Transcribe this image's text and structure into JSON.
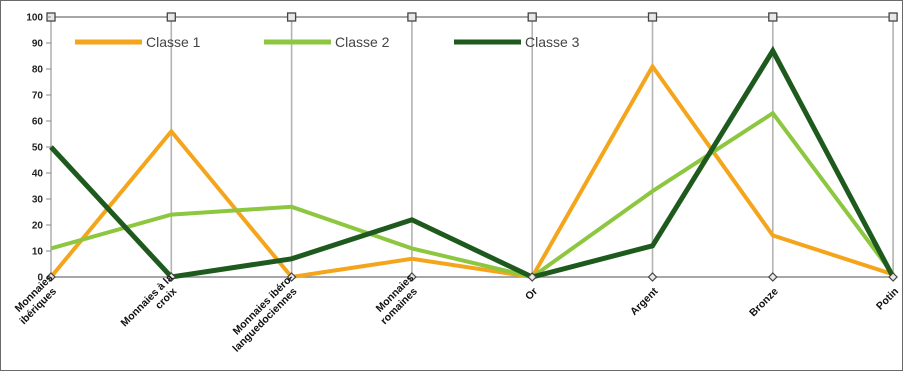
{
  "chart_data": {
    "type": "line",
    "title": "",
    "xlabel": "",
    "ylabel": "",
    "ylim": [
      0,
      100
    ],
    "yticks": [
      0,
      10,
      20,
      30,
      40,
      50,
      60,
      70,
      80,
      90,
      100
    ],
    "grid": "vertical lines at categories",
    "legend_position": "top-left",
    "categories": [
      [
        "Monnaies",
        "ibériques"
      ],
      [
        "Monnaies à la",
        "croix"
      ],
      [
        "Monnaies ibéro-",
        "languedociennes"
      ],
      [
        "Monnaies",
        "romaines"
      ],
      [
        "Or"
      ],
      [
        "Argent"
      ],
      [
        "Bronze"
      ],
      [
        "Potin"
      ]
    ],
    "series": [
      {
        "name": "Classe 1",
        "color": "#f4a51c",
        "values": [
          0,
          56,
          0,
          7,
          0,
          81,
          16,
          1
        ]
      },
      {
        "name": "Classe 2",
        "color": "#8dc63f",
        "values": [
          11,
          24,
          27,
          11,
          0,
          33,
          63,
          1
        ]
      },
      {
        "name": "Classe 3",
        "color": "#1e5a1e",
        "values": [
          50,
          0,
          7,
          22,
          0,
          12,
          87,
          0
        ]
      }
    ]
  }
}
